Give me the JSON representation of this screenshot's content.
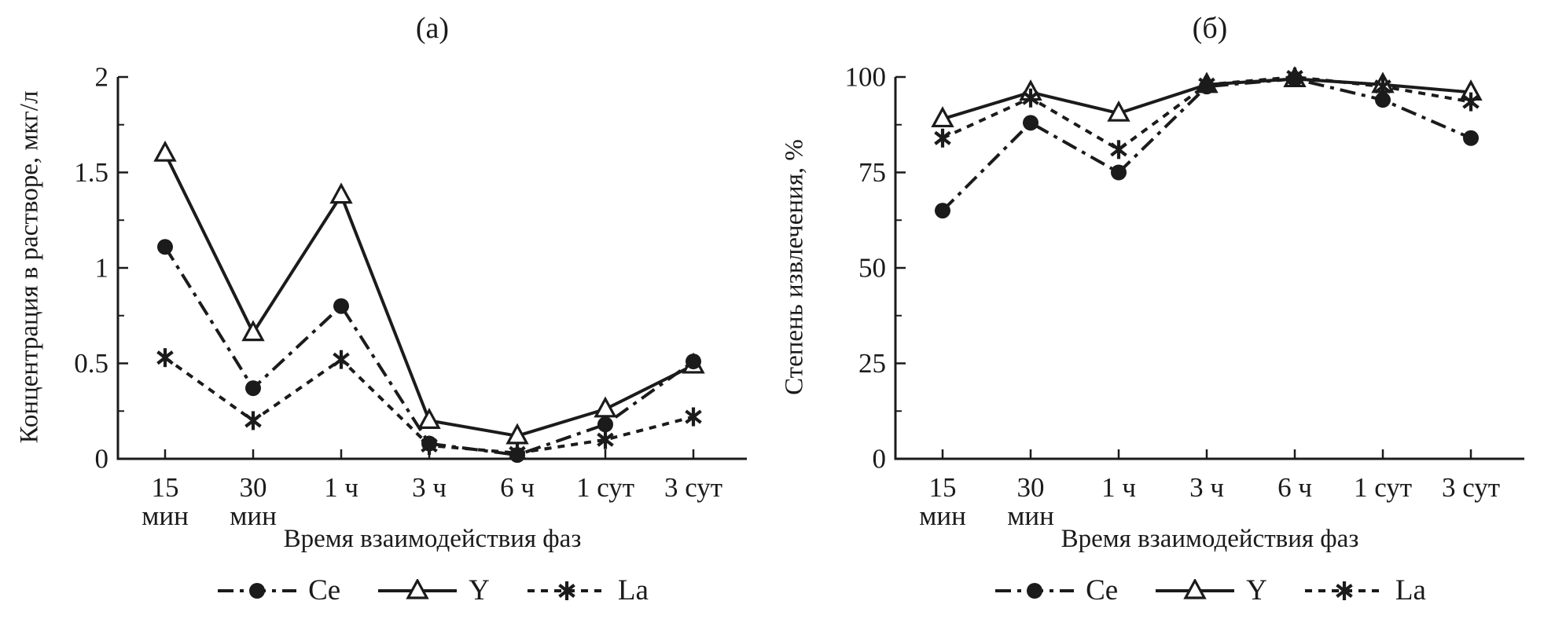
{
  "page": {
    "background": "#ffffff",
    "ink": "#1b1b1b"
  },
  "chart_data": [
    {
      "id": "a",
      "type": "line",
      "title": "(а)",
      "xlabel": "Время взаимодействия фаз",
      "ylabel": "Концентрация в растворе, мкг/л",
      "categories": [
        "15 мин",
        "30 мин",
        "1 ч",
        "3 ч",
        "6 ч",
        "1 сут",
        "3 сут"
      ],
      "xtick_lines": [
        [
          "15",
          "мин"
        ],
        [
          "30",
          "мин"
        ],
        [
          "1 ч"
        ],
        [
          "3 ч"
        ],
        [
          "6 ч"
        ],
        [
          "1 сут"
        ],
        [
          "3 сут"
        ]
      ],
      "ylim": [
        0,
        2
      ],
      "yticks": [
        0,
        0.5,
        1,
        1.5,
        2
      ],
      "ytick_labels": [
        "0",
        "0.5",
        "1",
        "1.5",
        "2"
      ],
      "minor_ytick_step": 0.25,
      "grid": false,
      "legend_position": "bottom",
      "series": [
        {
          "name": "Ce",
          "marker": "filled-circle",
          "line": "dash-dot",
          "values": [
            1.11,
            0.37,
            0.8,
            0.08,
            0.02,
            0.18,
            0.51
          ]
        },
        {
          "name": "Y",
          "marker": "open-triangle",
          "line": "solid",
          "values": [
            1.6,
            0.66,
            1.38,
            0.2,
            0.12,
            0.26,
            0.49
          ]
        },
        {
          "name": "La",
          "marker": "asterisk",
          "line": "dashed",
          "values": [
            0.53,
            0.2,
            0.52,
            0.07,
            0.03,
            0.1,
            0.22
          ]
        }
      ]
    },
    {
      "id": "b",
      "type": "line",
      "title": "(б)",
      "xlabel": "Время взаимодействия фаз",
      "ylabel": "Степень извлечения, %",
      "categories": [
        "15 мин",
        "30 мин",
        "1 ч",
        "3 ч",
        "6 ч",
        "1 сут",
        "3 сут"
      ],
      "xtick_lines": [
        [
          "15",
          "мин"
        ],
        [
          "30",
          "мин"
        ],
        [
          "1 ч"
        ],
        [
          "3 ч"
        ],
        [
          "6 ч"
        ],
        [
          "1 сут"
        ],
        [
          "3 сут"
        ]
      ],
      "ylim": [
        0,
        100
      ],
      "yticks": [
        0,
        25,
        50,
        75,
        100
      ],
      "ytick_labels": [
        "0",
        "25",
        "50",
        "75",
        "100"
      ],
      "minor_ytick_step": 12.5,
      "grid": false,
      "legend_position": "bottom",
      "series": [
        {
          "name": "Ce",
          "marker": "filled-circle",
          "line": "dash-dot",
          "values": [
            65,
            88,
            75,
            97.5,
            99.5,
            94,
            84
          ]
        },
        {
          "name": "Y",
          "marker": "open-triangle",
          "line": "solid",
          "values": [
            89,
            96,
            90.5,
            98,
            99.5,
            98,
            96
          ]
        },
        {
          "name": "La",
          "marker": "asterisk",
          "line": "dashed",
          "values": [
            84,
            94.5,
            81,
            98,
            100,
            97.5,
            93.5
          ]
        }
      ]
    }
  ]
}
